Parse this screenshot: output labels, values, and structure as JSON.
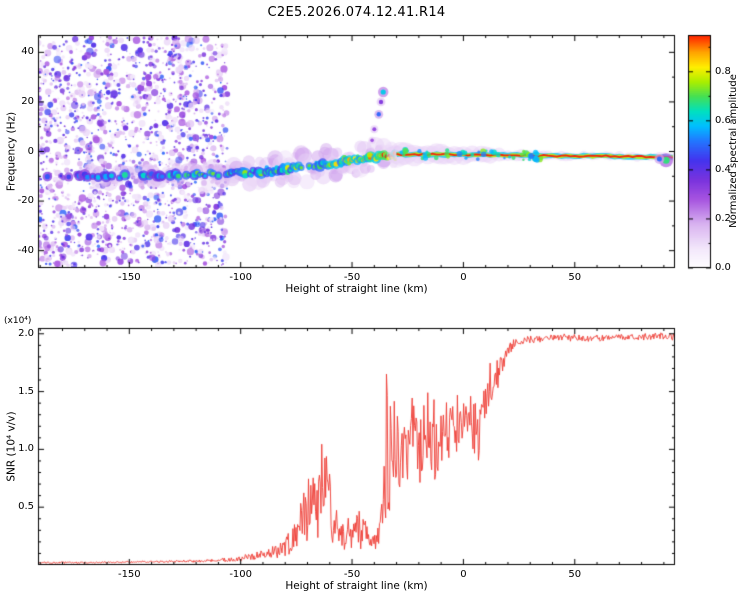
{
  "title": "C2E5.2026.074.12.41.R14",
  "random_seed": 1337,
  "colors": {
    "background": "#ffffff",
    "axis": "#000000",
    "snr_line": "#ee3b33"
  },
  "colormap": {
    "stops": [
      [
        0.0,
        "#ffffff"
      ],
      [
        0.08,
        "#f3e8fb"
      ],
      [
        0.18,
        "#d9b3f0"
      ],
      [
        0.28,
        "#a855e0"
      ],
      [
        0.36,
        "#7a33dd"
      ],
      [
        0.44,
        "#4433ee"
      ],
      [
        0.52,
        "#2277ff"
      ],
      [
        0.58,
        "#00bfff"
      ],
      [
        0.64,
        "#00e0c0"
      ],
      [
        0.7,
        "#44e055"
      ],
      [
        0.76,
        "#aaee00"
      ],
      [
        0.82,
        "#ffee00"
      ],
      [
        0.88,
        "#ffa500"
      ],
      [
        0.94,
        "#ff3300"
      ],
      [
        1.0,
        "#dd0022"
      ]
    ]
  },
  "chart_data": [
    {
      "type": "spectrogram",
      "title": "",
      "xlabel": "Height of straight line (km)",
      "ylabel": "Frequency (Hz)",
      "x_range": [
        -191,
        95
      ],
      "y_range": [
        -47,
        47
      ],
      "x_ticks": [
        -150,
        -100,
        -50,
        0,
        50
      ],
      "y_ticks": [
        -40,
        -20,
        0,
        20,
        40
      ],
      "grid": false,
      "colorbar": {
        "label": "Normalized spectral amplitude",
        "ticks": [
          0.0,
          0.2,
          0.4,
          0.6,
          0.8
        ],
        "range": [
          0,
          0.95
        ]
      },
      "noise_region": {
        "x_min": -191,
        "x_max": -106,
        "amp_min": 0.08,
        "amp_max": 0.5,
        "count": 1500,
        "small_count": 300
      },
      "track": [
        [
          -191,
          -9.5,
          0.5,
          1.5
        ],
        [
          -180,
          -9.8,
          0.52,
          1.5
        ],
        [
          -170,
          -10.0,
          0.55,
          1.5
        ],
        [
          -160,
          -10.0,
          0.6,
          1.6
        ],
        [
          -150,
          -10.0,
          0.62,
          1.6
        ],
        [
          -140,
          -9.6,
          0.6,
          1.7
        ],
        [
          -130,
          -9.4,
          0.62,
          1.8
        ],
        [
          -120,
          -9.2,
          0.62,
          2.0
        ],
        [
          -112,
          -9.0,
          0.64,
          2.2
        ],
        [
          -105,
          -9.0,
          0.66,
          2.6
        ],
        [
          -100,
          -8.6,
          0.68,
          2.8
        ],
        [
          -95,
          -8.4,
          0.66,
          3.0
        ],
        [
          -90,
          -8.0,
          0.7,
          3.2
        ],
        [
          -85,
          -7.8,
          0.68,
          3.4
        ],
        [
          -80,
          -7.2,
          0.7,
          3.6
        ],
        [
          -75,
          -6.6,
          0.72,
          3.8
        ],
        [
          -70,
          -6.0,
          0.72,
          3.8
        ],
        [
          -65,
          -5.4,
          0.74,
          3.8
        ],
        [
          -60,
          -5.0,
          0.76,
          3.8
        ],
        [
          -55,
          -4.2,
          0.74,
          3.6
        ],
        [
          -50,
          -3.6,
          0.78,
          3.4
        ],
        [
          -45,
          -3.0,
          0.84,
          3.0
        ],
        [
          -40,
          -2.4,
          0.88,
          2.8
        ],
        [
          -35,
          -2.0,
          0.92,
          2.4
        ],
        [
          -30,
          -1.4,
          0.95,
          2.0
        ]
      ],
      "line": [
        [
          -30,
          -1.2,
          4.0
        ],
        [
          -10,
          -1.2,
          3.6
        ],
        [
          0,
          -1.3,
          3.4
        ],
        [
          10,
          -1.4,
          3.0
        ],
        [
          20,
          -1.5,
          2.6
        ],
        [
          30,
          -1.6,
          2.2
        ],
        [
          45,
          -1.8,
          1.8
        ],
        [
          60,
          -1.9,
          1.6
        ],
        [
          80,
          -2.1,
          1.5
        ],
        [
          95,
          -2.2,
          1.5
        ]
      ],
      "features": [
        [
          -36,
          24,
          0.6,
          2.6
        ],
        [
          -37,
          20,
          0.35,
          2.2
        ],
        [
          -38,
          15,
          0.5,
          2.2
        ],
        [
          -40,
          9,
          0.32,
          2.0
        ],
        [
          -41,
          4.5,
          0.3,
          1.8
        ],
        [
          91,
          -3.5,
          0.68,
          3.5
        ],
        [
          88,
          -3.0,
          0.5,
          2.5
        ]
      ]
    },
    {
      "type": "line",
      "title": "",
      "xlabel": "Height of straight line (km)",
      "ylabel": "SNR (10⁴ v/v)",
      "scale_label": "(x10⁴)",
      "x_range": [
        -191,
        95
      ],
      "y_range": [
        0,
        2.05
      ],
      "x_ticks": [
        -150,
        -100,
        -50,
        0,
        50
      ],
      "y_ticks": [
        0.5,
        1.0,
        1.5,
        2.0
      ],
      "grid": false,
      "envelope": [
        [
          -191,
          0.02,
          0.008
        ],
        [
          -170,
          0.02,
          0.008
        ],
        [
          -150,
          0.025,
          0.01
        ],
        [
          -130,
          0.03,
          0.012
        ],
        [
          -115,
          0.035,
          0.015
        ],
        [
          -105,
          0.045,
          0.02
        ],
        [
          -98,
          0.06,
          0.03
        ],
        [
          -92,
          0.08,
          0.045
        ],
        [
          -87,
          0.1,
          0.06
        ],
        [
          -83,
          0.13,
          0.09
        ],
        [
          -79,
          0.17,
          0.12
        ],
        [
          -76,
          0.22,
          0.16
        ],
        [
          -73,
          0.35,
          0.28
        ],
        [
          -70,
          0.5,
          0.38
        ],
        [
          -67,
          0.55,
          0.42
        ],
        [
          -64,
          0.6,
          0.45
        ],
        [
          -61,
          0.55,
          0.42
        ],
        [
          -58,
          0.4,
          0.3
        ],
        [
          -56,
          0.28,
          0.18
        ],
        [
          -53,
          0.22,
          0.12
        ],
        [
          -50,
          0.25,
          0.15
        ],
        [
          -47,
          0.3,
          0.22
        ],
        [
          -44,
          0.28,
          0.18
        ],
        [
          -42,
          0.2,
          0.1
        ],
        [
          -40,
          0.17,
          0.08
        ],
        [
          -38,
          0.22,
          0.15
        ],
        [
          -36,
          0.5,
          0.45
        ],
        [
          -34,
          1.0,
          0.85
        ],
        [
          -32,
          1.15,
          0.8
        ],
        [
          -30,
          0.95,
          0.55
        ],
        [
          -28,
          0.8,
          0.45
        ],
        [
          -26,
          0.9,
          0.45
        ],
        [
          -24,
          1.05,
          0.45
        ],
        [
          -22,
          1.1,
          0.4
        ],
        [
          -20,
          0.95,
          0.45
        ],
        [
          -18,
          1.15,
          0.4
        ],
        [
          -16,
          1.25,
          0.35
        ],
        [
          -14,
          1.05,
          0.45
        ],
        [
          -12,
          0.95,
          0.4
        ],
        [
          -10,
          1.1,
          0.35
        ],
        [
          -8,
          1.2,
          0.3
        ],
        [
          -6,
          1.15,
          0.35
        ],
        [
          -4,
          1.25,
          0.3
        ],
        [
          -2,
          1.2,
          0.3
        ],
        [
          0,
          1.3,
          0.3
        ],
        [
          2,
          1.35,
          0.3
        ],
        [
          4,
          1.25,
          0.35
        ],
        [
          6,
          1.1,
          0.35
        ],
        [
          8,
          1.2,
          0.3
        ],
        [
          10,
          1.45,
          0.25
        ],
        [
          12,
          1.55,
          0.22
        ],
        [
          14,
          1.6,
          0.18
        ],
        [
          16,
          1.68,
          0.15
        ],
        [
          18,
          1.78,
          0.12
        ],
        [
          20,
          1.86,
          0.08
        ],
        [
          23,
          1.91,
          0.06
        ],
        [
          26,
          1.94,
          0.045
        ],
        [
          30,
          1.95,
          0.04
        ],
        [
          35,
          1.96,
          0.035
        ],
        [
          40,
          1.96,
          0.035
        ],
        [
          50,
          1.97,
          0.035
        ],
        [
          60,
          1.96,
          0.035
        ],
        [
          70,
          1.97,
          0.03
        ],
        [
          80,
          1.97,
          0.03
        ],
        [
          88,
          1.98,
          0.03
        ],
        [
          95,
          1.96,
          0.04
        ]
      ]
    }
  ]
}
